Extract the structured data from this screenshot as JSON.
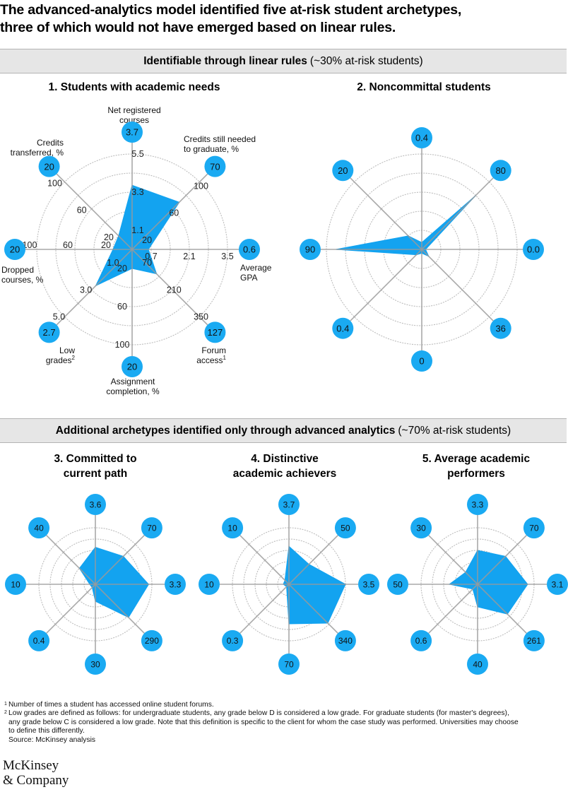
{
  "title": {
    "line1": "The advanced-analytics model identified five at-risk student archetypes,",
    "line2": "three of which would not have emerged based on linear rules."
  },
  "section1": {
    "bold": "Identifiable through linear rules",
    "normal": "(~30% at-risk students)"
  },
  "section2": {
    "bold": "Additional archetypes identified only through advanced analytics",
    "normal": "(~70% at-risk students)"
  },
  "axis_labels": {
    "courses": [
      "Net registered",
      "courses"
    ],
    "credits_needed": [
      "Credits still needed",
      "to graduate, %"
    ],
    "gpa": [
      "Average",
      "GPA"
    ],
    "forum": [
      "Forum",
      "access"
    ],
    "assignment": [
      "Assignment",
      "completion, %"
    ],
    "low_grades": [
      "Low",
      "grades"
    ],
    "dropped": [
      "Dropped",
      "courses, %"
    ],
    "transferred": [
      "Credits",
      "transferred, %"
    ]
  },
  "footnote_marks": {
    "forum": "1",
    "low_grades": "2"
  },
  "chart_data": [
    {
      "type": "radar",
      "title": "1. Students with academic needs",
      "axes": [
        "Net registered courses",
        "Credits still needed to graduate, %",
        "Average GPA",
        "Forum access",
        "Assignment completion, %",
        "Low grades",
        "Dropped courses, %",
        "Credits transferred, %"
      ],
      "values": [
        3.7,
        70,
        0.6,
        127,
        20,
        2.7,
        20,
        20
      ],
      "value_labels": [
        "3.7",
        "70",
        "0.6",
        "127",
        "20",
        "2.7",
        "20",
        "20"
      ],
      "ticks": [
        [
          "1.1",
          "3.3",
          "5.5"
        ],
        [
          "20",
          "60",
          "100"
        ],
        [
          "0.7",
          "2.1",
          "3.5"
        ],
        [
          "70",
          "210",
          "350"
        ],
        [
          "20",
          "60",
          "100"
        ],
        [
          "1.0",
          "3.0",
          "5.0"
        ],
        [
          "20",
          "60",
          "100"
        ],
        [
          "20",
          "60",
          "100"
        ]
      ],
      "axis_max": [
        5.5,
        100,
        3.5,
        350,
        100,
        5.0,
        100,
        100
      ]
    },
    {
      "type": "radar",
      "title": "2. Noncommittal students",
      "value_labels": [
        "0.4",
        "80",
        "0.0",
        "36",
        "0",
        "0.4",
        "90",
        "20"
      ],
      "values": [
        0.4,
        80,
        0.0,
        36,
        0,
        0.4,
        90,
        20
      ]
    },
    {
      "type": "radar",
      "title": "3. Committed to current path",
      "value_labels": [
        "3.6",
        "70",
        "3.3",
        "290",
        "30",
        "0.4",
        "10",
        "40"
      ],
      "values": [
        3.6,
        70,
        3.3,
        290,
        30,
        0.4,
        10,
        40
      ]
    },
    {
      "type": "radar",
      "title": "4. Distinctive academic achievers",
      "value_labels": [
        "3.7",
        "50",
        "3.5",
        "340",
        "70",
        "0.3",
        "10",
        "10"
      ],
      "values": [
        3.7,
        50,
        3.5,
        340,
        70,
        0.3,
        10,
        10
      ]
    },
    {
      "type": "radar",
      "title": "5. Average academic performers",
      "value_labels": [
        "3.3",
        "70",
        "3.1",
        "261",
        "40",
        "0.6",
        "50",
        "30"
      ],
      "values": [
        3.3,
        70,
        3.1,
        261,
        40,
        0.6,
        50,
        30
      ]
    }
  ],
  "colors": {
    "fill": "#13a3f0",
    "badge": "#1aaaf2",
    "ring": "#bdbdbd",
    "spoke": "#9a9a9a"
  },
  "panel_titles": {
    "p1": "1. Students with academic needs",
    "p2": "2. Noncommittal students",
    "p3": [
      "3. Committed to",
      "current path"
    ],
    "p4": [
      "4. Distinctive",
      "academic achievers"
    ],
    "p5": [
      "5. Average academic",
      "performers"
    ]
  },
  "footnotes": {
    "f1": "Number of times a student has accessed online student forums.",
    "f2a": "Low grades are defined as follows: for undergraduate students, any grade below D is considered a low grade. For graduate students (for master's degrees),",
    "f2b": "any grade below C is considered a low grade. Note that this definition is specific to the client for whom the case study was performed. Universities may choose",
    "f2c": "to define this differently.",
    "source": "Source: McKinsey analysis"
  },
  "logo": {
    "line1": "McKinsey",
    "line2": "& Company"
  }
}
